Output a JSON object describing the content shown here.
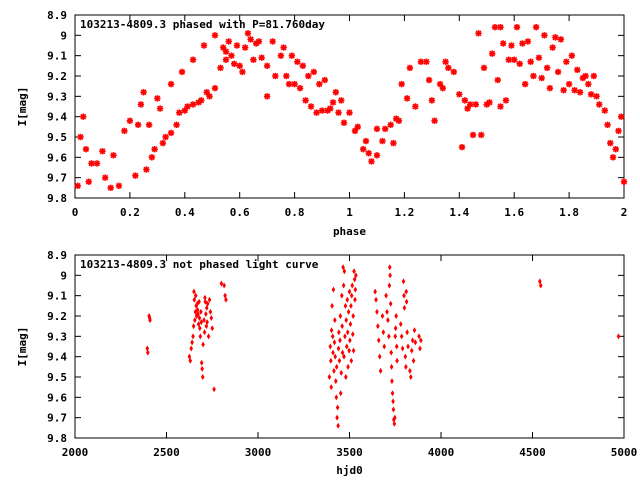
{
  "colors": {
    "points": "#ff0000",
    "axes": "#000000",
    "background": "#ffffff"
  },
  "chart_data": [
    {
      "type": "scatter",
      "title": "103213-4809.3 phased with P=81.760day",
      "xlabel": "phase",
      "ylabel": "I[mag]",
      "xlim": [
        0,
        2
      ],
      "ylim": [
        8.9,
        9.8
      ],
      "y_inverted": true,
      "grid": false,
      "marker": "asterisk",
      "x_ticks": [
        "0",
        "0.2",
        "0.4",
        "0.6",
        "0.8",
        "1",
        "1.2",
        "1.4",
        "1.6",
        "1.8",
        "2"
      ],
      "y_ticks": [
        "8.9",
        "9",
        "9.1",
        "9.2",
        "9.3",
        "9.4",
        "9.5",
        "9.6",
        "9.7",
        "9.8"
      ],
      "x_tick_values": [
        0,
        0.2,
        0.4,
        0.6,
        0.8,
        1,
        1.2,
        1.4,
        1.6,
        1.8,
        2
      ],
      "y_tick_values": [
        8.9,
        9.0,
        9.1,
        9.2,
        9.3,
        9.4,
        9.5,
        9.6,
        9.7,
        9.8
      ],
      "points": [
        [
          0.01,
          9.74
        ],
        [
          0.02,
          9.5
        ],
        [
          0.03,
          9.4
        ],
        [
          0.04,
          9.56
        ],
        [
          0.05,
          9.72
        ],
        [
          0.06,
          9.63
        ],
        [
          0.08,
          9.63
        ],
        [
          0.1,
          9.57
        ],
        [
          0.11,
          9.7
        ],
        [
          0.13,
          9.75
        ],
        [
          0.14,
          9.59
        ],
        [
          0.16,
          9.74
        ],
        [
          0.18,
          9.47
        ],
        [
          0.2,
          9.42
        ],
        [
          0.22,
          9.69
        ],
        [
          0.23,
          9.44
        ],
        [
          0.24,
          9.34
        ],
        [
          0.25,
          9.28
        ],
        [
          0.26,
          9.66
        ],
        [
          0.27,
          9.44
        ],
        [
          0.28,
          9.6
        ],
        [
          0.29,
          9.56
        ],
        [
          0.3,
          9.31
        ],
        [
          0.31,
          9.36
        ],
        [
          0.32,
          9.53
        ],
        [
          0.33,
          9.5
        ],
        [
          0.35,
          9.48
        ],
        [
          0.35,
          9.24
        ],
        [
          0.37,
          9.44
        ],
        [
          0.38,
          9.38
        ],
        [
          0.39,
          9.18
        ],
        [
          0.4,
          9.37
        ],
        [
          0.41,
          9.35
        ],
        [
          0.43,
          9.34
        ],
        [
          0.43,
          9.12
        ],
        [
          0.45,
          9.33
        ],
        [
          0.46,
          9.32
        ],
        [
          0.47,
          9.05
        ],
        [
          0.48,
          9.28
        ],
        [
          0.49,
          9.3
        ],
        [
          0.51,
          9.26
        ],
        [
          0.51,
          9.0
        ],
        [
          0.53,
          9.16
        ],
        [
          0.54,
          9.06
        ],
        [
          0.55,
          9.08
        ],
        [
          0.55,
          9.12
        ],
        [
          0.56,
          9.03
        ],
        [
          0.57,
          9.1
        ],
        [
          0.58,
          9.14
        ],
        [
          0.59,
          9.05
        ],
        [
          0.6,
          9.15
        ],
        [
          0.61,
          9.18
        ],
        [
          0.62,
          9.06
        ],
        [
          0.63,
          8.99
        ],
        [
          0.64,
          9.02
        ],
        [
          0.65,
          9.12
        ],
        [
          0.66,
          9.04
        ],
        [
          0.67,
          9.03
        ],
        [
          0.68,
          9.11
        ],
        [
          0.7,
          9.15
        ],
        [
          0.7,
          9.3
        ],
        [
          0.72,
          9.03
        ],
        [
          0.73,
          9.2
        ],
        [
          0.75,
          9.1
        ],
        [
          0.76,
          9.06
        ],
        [
          0.77,
          9.2
        ],
        [
          0.78,
          9.24
        ],
        [
          0.79,
          9.1
        ],
        [
          0.8,
          9.24
        ],
        [
          0.81,
          9.13
        ],
        [
          0.82,
          9.26
        ],
        [
          0.83,
          9.15
        ],
        [
          0.84,
          9.32
        ],
        [
          0.85,
          9.2
        ],
        [
          0.86,
          9.35
        ],
        [
          0.87,
          9.18
        ],
        [
          0.88,
          9.38
        ],
        [
          0.89,
          9.24
        ],
        [
          0.9,
          9.37
        ],
        [
          0.91,
          9.22
        ],
        [
          0.92,
          9.37
        ],
        [
          0.93,
          9.36
        ],
        [
          0.94,
          9.33
        ],
        [
          0.95,
          9.28
        ],
        [
          0.96,
          9.38
        ],
        [
          0.97,
          9.32
        ],
        [
          0.98,
          9.43
        ],
        [
          1.0,
          9.38
        ],
        [
          1.02,
          9.47
        ],
        [
          1.03,
          9.45
        ],
        [
          1.05,
          9.56
        ],
        [
          1.06,
          9.52
        ],
        [
          1.07,
          9.58
        ],
        [
          1.08,
          9.62
        ],
        [
          1.1,
          9.46
        ],
        [
          1.1,
          9.59
        ],
        [
          1.12,
          9.52
        ],
        [
          1.13,
          9.46
        ],
        [
          1.15,
          9.44
        ],
        [
          1.16,
          9.53
        ],
        [
          1.17,
          9.41
        ],
        [
          1.18,
          9.42
        ],
        [
          1.19,
          9.24
        ],
        [
          1.21,
          9.31
        ],
        [
          1.22,
          9.16
        ],
        [
          1.24,
          9.35
        ],
        [
          1.26,
          9.13
        ],
        [
          1.28,
          9.13
        ],
        [
          1.29,
          9.22
        ],
        [
          1.3,
          9.32
        ],
        [
          1.31,
          9.42
        ],
        [
          1.33,
          9.24
        ],
        [
          1.34,
          9.26
        ],
        [
          1.35,
          9.13
        ],
        [
          1.36,
          9.16
        ],
        [
          1.38,
          9.18
        ],
        [
          1.4,
          9.29
        ],
        [
          1.41,
          9.55
        ],
        [
          1.42,
          9.32
        ],
        [
          1.43,
          9.36
        ],
        [
          1.44,
          9.34
        ],
        [
          1.45,
          9.49
        ],
        [
          1.46,
          9.34
        ],
        [
          1.47,
          8.99
        ],
        [
          1.48,
          9.49
        ],
        [
          1.49,
          9.16
        ],
        [
          1.5,
          9.34
        ],
        [
          1.51,
          9.33
        ],
        [
          1.52,
          9.09
        ],
        [
          1.53,
          8.96
        ],
        [
          1.54,
          9.22
        ],
        [
          1.55,
          8.96
        ],
        [
          1.55,
          9.35
        ],
        [
          1.56,
          9.04
        ],
        [
          1.57,
          9.32
        ],
        [
          1.58,
          9.12
        ],
        [
          1.59,
          9.05
        ],
        [
          1.6,
          9.12
        ],
        [
          1.61,
          8.96
        ],
        [
          1.62,
          9.14
        ],
        [
          1.63,
          9.04
        ],
        [
          1.64,
          9.24
        ],
        [
          1.65,
          9.03
        ],
        [
          1.66,
          9.13
        ],
        [
          1.67,
          9.2
        ],
        [
          1.68,
          8.96
        ],
        [
          1.69,
          9.11
        ],
        [
          1.7,
          9.21
        ],
        [
          1.71,
          9.0
        ],
        [
          1.72,
          9.16
        ],
        [
          1.73,
          9.26
        ],
        [
          1.74,
          9.06
        ],
        [
          1.75,
          9.01
        ],
        [
          1.76,
          9.18
        ],
        [
          1.77,
          9.02
        ],
        [
          1.78,
          9.27
        ],
        [
          1.79,
          9.13
        ],
        [
          1.8,
          9.24
        ],
        [
          1.81,
          9.1
        ],
        [
          1.82,
          9.27
        ],
        [
          1.83,
          9.17
        ],
        [
          1.84,
          9.28
        ],
        [
          1.85,
          9.21
        ],
        [
          1.86,
          9.2
        ],
        [
          1.87,
          9.24
        ],
        [
          1.88,
          9.29
        ],
        [
          1.89,
          9.2
        ],
        [
          1.9,
          9.3
        ],
        [
          1.91,
          9.34
        ],
        [
          1.93,
          9.37
        ],
        [
          1.94,
          9.44
        ],
        [
          1.95,
          9.53
        ],
        [
          1.96,
          9.6
        ],
        [
          1.97,
          9.56
        ],
        [
          1.98,
          9.47
        ],
        [
          1.99,
          9.4
        ],
        [
          2.0,
          9.72
        ]
      ]
    },
    {
      "type": "scatter",
      "title": "103213-4809.3 not phased light curve",
      "xlabel": "hjd0",
      "ylabel": "I[mag]",
      "xlim": [
        2000,
        5000
      ],
      "ylim": [
        8.9,
        9.8
      ],
      "y_inverted": true,
      "grid": false,
      "marker": "diamond",
      "x_ticks": [
        "2000",
        "2500",
        "3000",
        "3500",
        "4000",
        "4500",
        "5000"
      ],
      "y_ticks": [
        "8.9",
        "9",
        "9.1",
        "9.2",
        "9.3",
        "9.4",
        "9.5",
        "9.6",
        "9.7",
        "9.8"
      ],
      "x_tick_values": [
        2000,
        2500,
        3000,
        3500,
        4000,
        4500,
        5000
      ],
      "y_tick_values": [
        8.9,
        9.0,
        9.1,
        9.2,
        9.3,
        9.4,
        9.5,
        9.6,
        9.7,
        9.8
      ],
      "points": [
        [
          2395,
          9.36
        ],
        [
          2398,
          9.38
        ],
        [
          2405,
          9.2
        ],
        [
          2408,
          9.21
        ],
        [
          2410,
          9.22
        ],
        [
          2625,
          9.4
        ],
        [
          2630,
          9.42
        ],
        [
          2635,
          9.36
        ],
        [
          2640,
          9.33
        ],
        [
          2645,
          9.3
        ],
        [
          2648,
          9.25
        ],
        [
          2650,
          9.08
        ],
        [
          2652,
          9.12
        ],
        [
          2655,
          9.22
        ],
        [
          2658,
          9.18
        ],
        [
          2660,
          9.1
        ],
        [
          2662,
          9.15
        ],
        [
          2665,
          9.2
        ],
        [
          2668,
          9.14
        ],
        [
          2670,
          9.17
        ],
        [
          2672,
          9.19
        ],
        [
          2675,
          9.24
        ],
        [
          2678,
          9.13
        ],
        [
          2680,
          9.21
        ],
        [
          2682,
          9.26
        ],
        [
          2685,
          9.3
        ],
        [
          2688,
          9.18
        ],
        [
          2690,
          9.23
        ],
        [
          2692,
          9.43
        ],
        [
          2695,
          9.46
        ],
        [
          2698,
          9.5
        ],
        [
          2700,
          9.34
        ],
        [
          2705,
          9.22
        ],
        [
          2708,
          9.28
        ],
        [
          2710,
          9.11
        ],
        [
          2712,
          9.13
        ],
        [
          2715,
          9.19
        ],
        [
          2718,
          9.25
        ],
        [
          2720,
          9.16
        ],
        [
          2722,
          9.23
        ],
        [
          2725,
          9.14
        ],
        [
          2730,
          9.3
        ],
        [
          2735,
          9.12
        ],
        [
          2740,
          9.18
        ],
        [
          2745,
          9.21
        ],
        [
          2750,
          9.26
        ],
        [
          2760,
          9.56
        ],
        [
          2800,
          9.04
        ],
        [
          2815,
          9.05
        ],
        [
          2820,
          9.1
        ],
        [
          2825,
          9.12
        ],
        [
          3390,
          9.5
        ],
        [
          3395,
          9.35
        ],
        [
          3398,
          9.42
        ],
        [
          3400,
          9.55
        ],
        [
          3402,
          9.27
        ],
        [
          3405,
          9.15
        ],
        [
          3408,
          9.3
        ],
        [
          3410,
          9.38
        ],
        [
          3412,
          9.07
        ],
        [
          3415,
          9.47
        ],
        [
          3418,
          9.33
        ],
        [
          3420,
          9.22
        ],
        [
          3422,
          9.4
        ],
        [
          3425,
          9.52
        ],
        [
          3428,
          9.6
        ],
        [
          3430,
          9.45
        ],
        [
          3432,
          9.7
        ],
        [
          3435,
          9.65
        ],
        [
          3438,
          9.74
        ],
        [
          3440,
          9.36
        ],
        [
          3442,
          9.28
        ],
        [
          3445,
          9.42
        ],
        [
          3448,
          9.32
        ],
        [
          3450,
          9.2
        ],
        [
          3452,
          9.58
        ],
        [
          3455,
          9.48
        ],
        [
          3458,
          9.1
        ],
        [
          3460,
          9.25
        ],
        [
          3462,
          9.38
        ],
        [
          3465,
          8.96
        ],
        [
          3468,
          9.05
        ],
        [
          3470,
          9.4
        ],
        [
          3472,
          8.98
        ],
        [
          3475,
          9.3
        ],
        [
          3478,
          9.15
        ],
        [
          3480,
          9.5
        ],
        [
          3482,
          9.22
        ],
        [
          3485,
          9.35
        ],
        [
          3488,
          9.12
        ],
        [
          3490,
          9.28
        ],
        [
          3492,
          9.45
        ],
        [
          3495,
          9.18
        ],
        [
          3498,
          9.37
        ],
        [
          3500,
          9.08
        ],
        [
          3502,
          9.32
        ],
        [
          3505,
          9.24
        ],
        [
          3508,
          9.15
        ],
        [
          3510,
          9.42
        ],
        [
          3512,
          9.1
        ],
        [
          3515,
          9.05
        ],
        [
          3518,
          9.29
        ],
        [
          3520,
          9.2
        ],
        [
          3522,
          9.37
        ],
        [
          3525,
          8.98
        ],
        [
          3528,
          9.02
        ],
        [
          3530,
          9.12
        ],
        [
          3532,
          9.07
        ],
        [
          3535,
          9.0
        ],
        [
          3640,
          9.08
        ],
        [
          3645,
          9.12
        ],
        [
          3650,
          9.18
        ],
        [
          3655,
          9.25
        ],
        [
          3660,
          9.32
        ],
        [
          3665,
          9.4
        ],
        [
          3670,
          9.47
        ],
        [
          3680,
          9.2
        ],
        [
          3685,
          9.28
        ],
        [
          3690,
          9.35
        ],
        [
          3700,
          9.1
        ],
        [
          3705,
          9.18
        ],
        [
          3710,
          9.22
        ],
        [
          3715,
          9.3
        ],
        [
          3718,
          9.05
        ],
        [
          3720,
          8.96
        ],
        [
          3722,
          9.0
        ],
        [
          3725,
          9.14
        ],
        [
          3728,
          9.38
        ],
        [
          3730,
          9.45
        ],
        [
          3732,
          9.52
        ],
        [
          3735,
          9.58
        ],
        [
          3738,
          9.62
        ],
        [
          3740,
          9.66
        ],
        [
          3742,
          9.71
        ],
        [
          3745,
          9.73
        ],
        [
          3748,
          9.7
        ],
        [
          3750,
          9.3
        ],
        [
          3752,
          9.26
        ],
        [
          3755,
          9.2
        ],
        [
          3758,
          9.35
        ],
        [
          3760,
          9.42
        ],
        [
          3780,
          9.24
        ],
        [
          3785,
          9.3
        ],
        [
          3790,
          9.36
        ],
        [
          3795,
          9.03
        ],
        [
          3798,
          9.1
        ],
        [
          3800,
          9.16
        ],
        [
          3805,
          9.4
        ],
        [
          3808,
          9.45
        ],
        [
          3810,
          9.08
        ],
        [
          3812,
          9.13
        ],
        [
          3815,
          9.28
        ],
        [
          3820,
          9.35
        ],
        [
          3830,
          9.47
        ],
        [
          3835,
          9.5
        ],
        [
          3840,
          9.37
        ],
        [
          3845,
          9.32
        ],
        [
          3850,
          9.42
        ],
        [
          3855,
          9.27
        ],
        [
          3860,
          9.33
        ],
        [
          3880,
          9.3
        ],
        [
          3885,
          9.36
        ],
        [
          3890,
          9.32
        ],
        [
          4540,
          9.03
        ],
        [
          4545,
          9.05
        ],
        [
          4970,
          9.3
        ]
      ]
    }
  ]
}
